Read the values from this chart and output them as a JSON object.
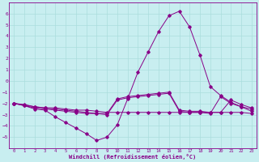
{
  "xlabel": "Windchill (Refroidissement éolien,°C)",
  "bg_color": "#c8eef0",
  "line_color": "#880088",
  "grid_color": "#aadddd",
  "xlim": [
    -0.5,
    23.5
  ],
  "ylim": [
    -6,
    7
  ],
  "xticks": [
    0,
    1,
    2,
    3,
    4,
    5,
    6,
    7,
    8,
    9,
    10,
    11,
    12,
    13,
    14,
    15,
    16,
    17,
    18,
    19,
    20,
    21,
    22,
    23
  ],
  "yticks": [
    -5,
    -4,
    -3,
    -2,
    -1,
    0,
    1,
    2,
    3,
    4,
    5,
    6
  ],
  "line1_x": [
    0,
    1,
    2,
    3,
    4,
    5,
    6,
    7,
    8,
    9,
    10,
    11,
    12,
    13,
    14,
    15,
    16,
    17,
    18,
    19,
    20,
    21,
    22,
    23
  ],
  "line1_y": [
    -2,
    -2.2,
    -2.5,
    -2.6,
    -3.2,
    -3.7,
    -4.2,
    -4.7,
    -5.3,
    -5.0,
    -3.9,
    -1.6,
    0.8,
    2.6,
    4.4,
    5.8,
    6.2,
    4.8,
    2.3,
    -0.5,
    -1.3,
    -1.9,
    -2.3,
    -2.7
  ],
  "line2_x": [
    0,
    1,
    2,
    3,
    4,
    5,
    6,
    7,
    8,
    9,
    10,
    11,
    12,
    13,
    14,
    15,
    16,
    17,
    18,
    19,
    20,
    21,
    22,
    23
  ],
  "line2_y": [
    -2,
    -2.2,
    -2.4,
    -2.5,
    -2.6,
    -2.7,
    -2.8,
    -2.9,
    -2.9,
    -3.0,
    -1.7,
    -1.5,
    -1.4,
    -1.3,
    -1.2,
    -1.1,
    -2.7,
    -2.8,
    -2.8,
    -2.9,
    -1.4,
    -2.0,
    -2.3,
    -2.5
  ],
  "line3_x": [
    0,
    1,
    2,
    3,
    4,
    5,
    6,
    7,
    8,
    9,
    10,
    11,
    12,
    13,
    14,
    15,
    16,
    17,
    18,
    19,
    20,
    21,
    22,
    23
  ],
  "line3_y": [
    -2,
    -2.1,
    -2.3,
    -2.4,
    -2.5,
    -2.6,
    -2.7,
    -2.8,
    -2.9,
    -2.9,
    -1.6,
    -1.4,
    -1.3,
    -1.2,
    -1.1,
    -1.0,
    -2.6,
    -2.7,
    -2.7,
    -2.8,
    -2.8,
    -1.7,
    -2.1,
    -2.4
  ],
  "line4_x": [
    0,
    2,
    3,
    4,
    5,
    6,
    7,
    8,
    9,
    10,
    11,
    12,
    13,
    14,
    15,
    16,
    17,
    18,
    19,
    20,
    21,
    22,
    23
  ],
  "line4_y": [
    -2,
    -2.3,
    -2.4,
    -2.4,
    -2.5,
    -2.6,
    -2.6,
    -2.7,
    -2.8,
    -2.8,
    -2.8,
    -2.8,
    -2.8,
    -2.8,
    -2.8,
    -2.8,
    -2.8,
    -2.8,
    -2.8,
    -2.8,
    -2.8,
    -2.8,
    -2.9
  ]
}
